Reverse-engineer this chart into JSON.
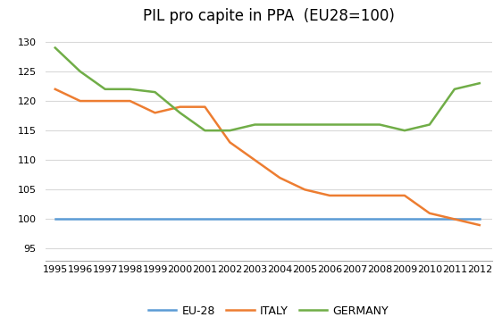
{
  "title": "PIL pro capite in PPA  (EU28=100)",
  "years": [
    1995,
    1996,
    1997,
    1998,
    1999,
    2000,
    2001,
    2002,
    2003,
    2004,
    2005,
    2006,
    2007,
    2008,
    2009,
    2010,
    2011,
    2012
  ],
  "eu28": [
    100,
    100,
    100,
    100,
    100,
    100,
    100,
    100,
    100,
    100,
    100,
    100,
    100,
    100,
    100,
    100,
    100,
    100
  ],
  "italy": [
    122,
    120,
    120,
    120,
    118,
    119,
    119,
    113,
    110,
    107,
    105,
    104,
    104,
    104,
    104,
    101,
    100,
    99
  ],
  "germany": [
    129,
    125,
    122,
    122,
    121.5,
    118,
    115,
    115,
    116,
    116,
    116,
    116,
    116,
    116,
    115,
    116,
    122,
    123
  ],
  "eu28_color": "#5B9BD5",
  "italy_color": "#ED7D31",
  "germany_color": "#70AD47",
  "ylim": [
    93,
    132
  ],
  "yticks": [
    95,
    100,
    105,
    110,
    115,
    120,
    125,
    130
  ],
  "legend_labels": [
    "EU-28",
    "ITALY",
    "GERMANY"
  ],
  "background_color": "#FFFFFF",
  "gridcolor": "#D9D9D9",
  "title_fontsize": 12,
  "tick_fontsize": 8,
  "legend_fontsize": 9,
  "linewidth": 1.8
}
